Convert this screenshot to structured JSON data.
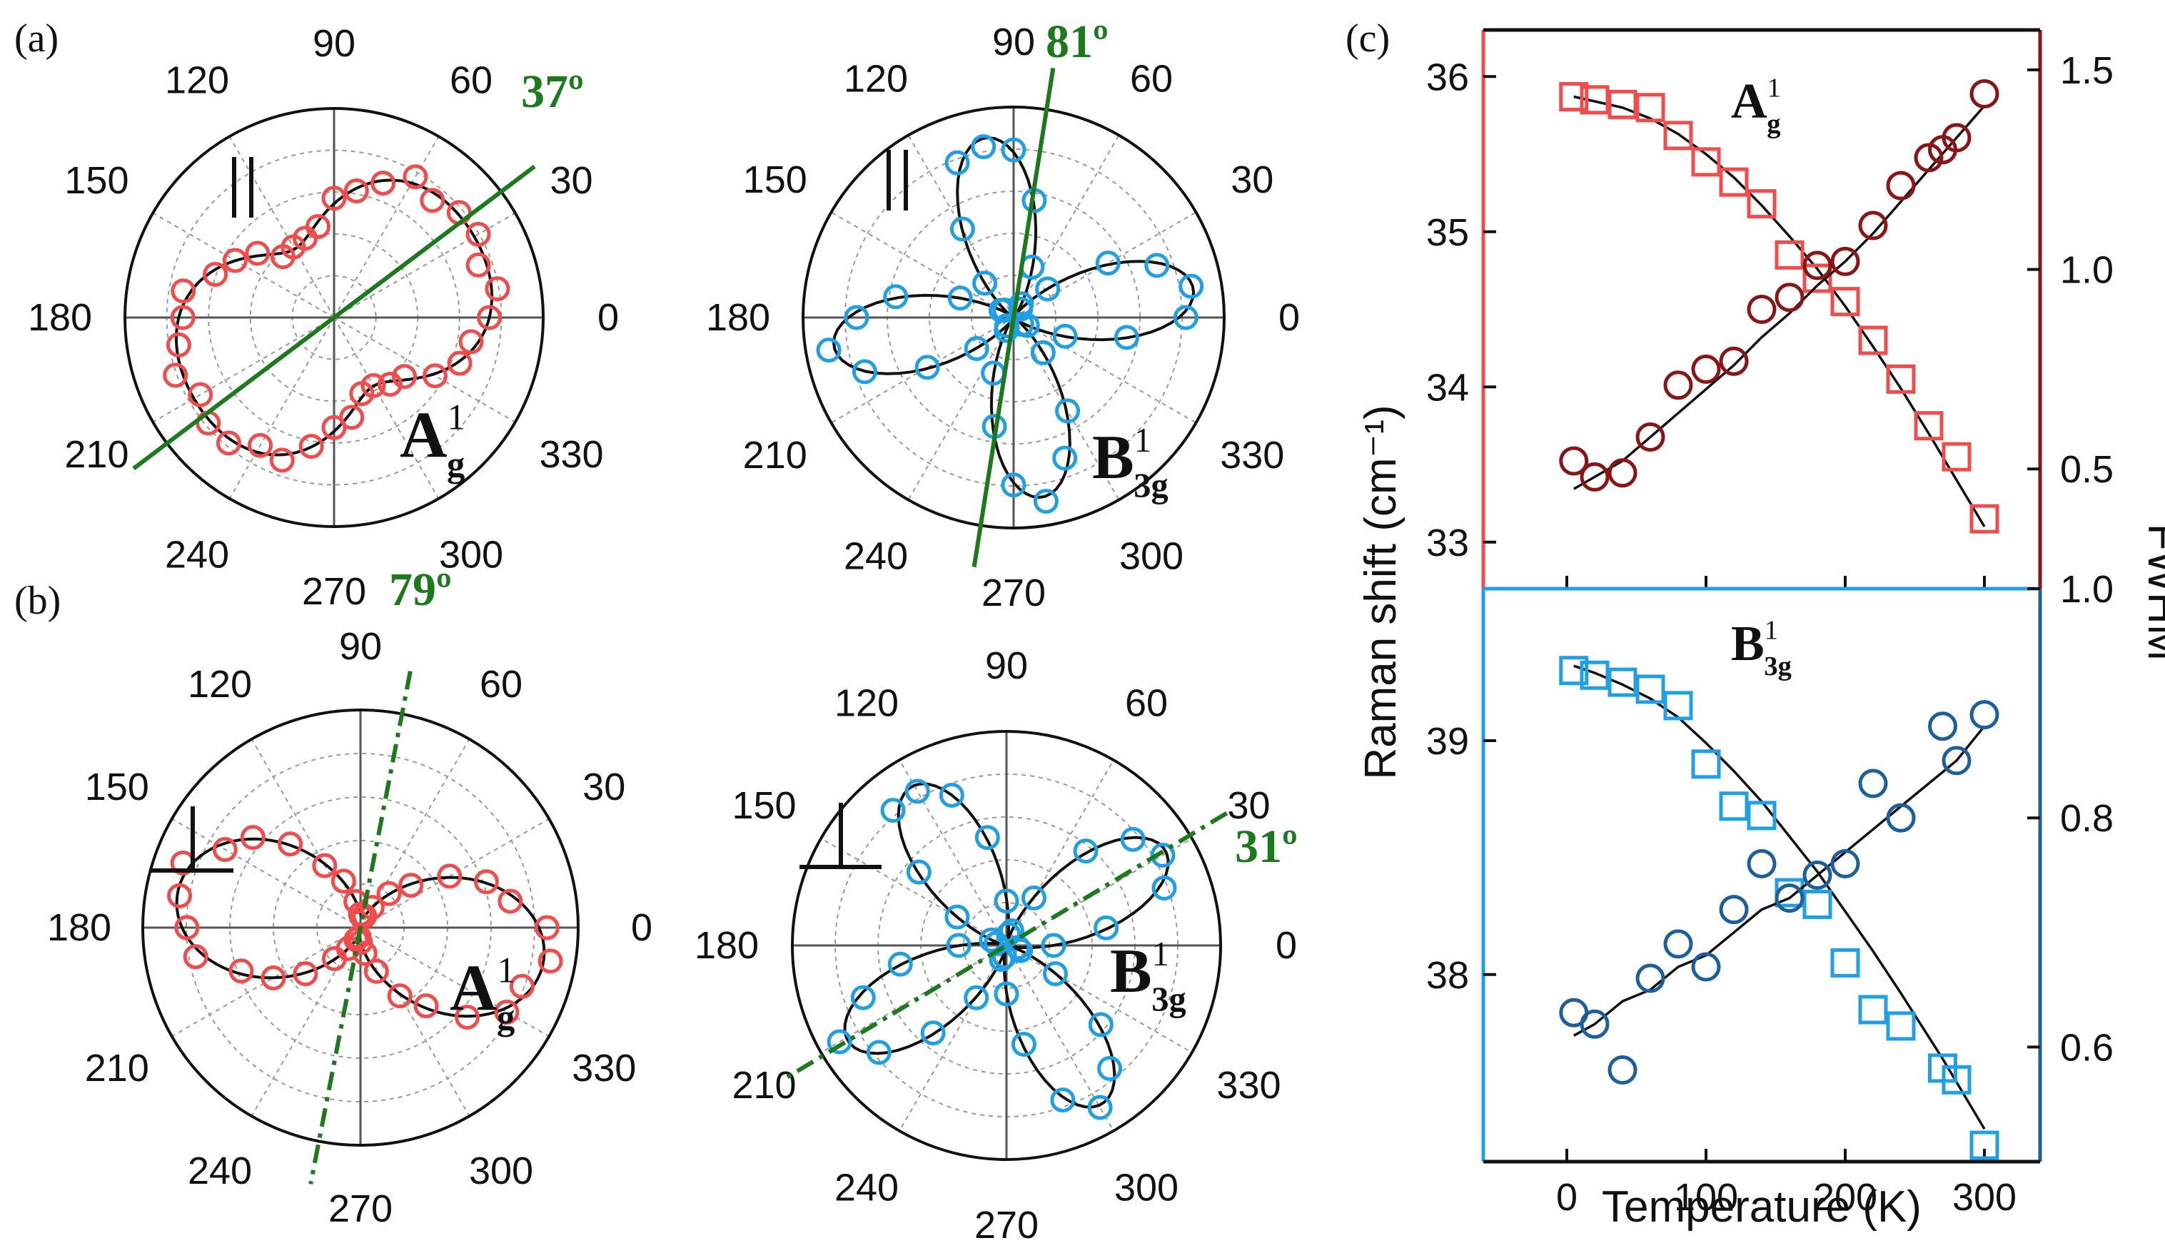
{
  "panel_labels": [
    "(a)",
    "(b)",
    "(c)"
  ],
  "colors": {
    "red": "#f24b4b",
    "blue": "#1fa0e6",
    "dark_red": "#8b1414",
    "dark_blue": "#1c5f9e",
    "green": "#1b7a1b",
    "grid": "#999999",
    "black": "#111111"
  },
  "polar_plots": [
    {
      "panel": "a",
      "mode": "A",
      "mode_sub": "g",
      "mode_sup": "1",
      "polarization_symbol": "||",
      "marker_color": "#f24b4b",
      "angle_annotation": "37º",
      "axis_angle_deg": 37,
      "axis_style": "solid",
      "angle_labels": [
        "0",
        "30",
        "60",
        "90",
        "120",
        "150",
        "180",
        "210",
        "240",
        "270",
        "300",
        "330"
      ],
      "rings": 5,
      "fit": {
        "a": 0.42,
        "b": 0.55,
        "phi_deg": 30
      },
      "points_deg": [
        0,
        10,
        20,
        30,
        40,
        50,
        60,
        70,
        80,
        90,
        100,
        110,
        120,
        130,
        140,
        150,
        160,
        170,
        180,
        190,
        200,
        210,
        220,
        230,
        240,
        250,
        260,
        270,
        280,
        290,
        300,
        310,
        320,
        330,
        340,
        350
      ]
    },
    {
      "panel": "a",
      "mode": "B",
      "mode_sub": "3g",
      "mode_sup": "1",
      "polarization_symbol": "||",
      "marker_color": "#1fa0e6",
      "angle_annotation": "81º",
      "axis_angle_deg": 81,
      "axis_style": "solid",
      "angle_labels": [
        "0",
        "30",
        "60",
        "90",
        "120",
        "150",
        "180",
        "210",
        "240",
        "270",
        "300",
        "330"
      ],
      "rings": 5,
      "fit": {
        "a": 0.06,
        "b": 0.92,
        "phi_deg": 0
      },
      "points_deg": [
        0,
        10,
        20,
        30,
        40,
        50,
        60,
        70,
        80,
        90,
        100,
        110,
        120,
        130,
        140,
        150,
        160,
        170,
        180,
        190,
        200,
        210,
        220,
        230,
        240,
        250,
        260,
        270,
        280,
        290,
        300,
        310,
        320,
        330,
        340,
        350
      ]
    },
    {
      "panel": "b",
      "mode": "A",
      "mode_sub": "g",
      "mode_sup": "1",
      "polarization_symbol": "⊥",
      "marker_color": "#f24b4b",
      "angle_annotation": "79º",
      "axis_angle_deg": 79,
      "axis_style": "dashdot",
      "angle_labels": [
        "0",
        "30",
        "60",
        "90",
        "120",
        "150",
        "180",
        "210",
        "240",
        "270",
        "300",
        "330"
      ],
      "rings": 5,
      "fit": {
        "a": 0.08,
        "b": 0.92,
        "phi_deg": 79
      },
      "points_deg": [
        0,
        10,
        20,
        30,
        40,
        50,
        60,
        70,
        80,
        90,
        100,
        110,
        120,
        130,
        140,
        150,
        160,
        170,
        180,
        190,
        200,
        210,
        220,
        230,
        240,
        250,
        260,
        270,
        280,
        290,
        300,
        310,
        320,
        330,
        340,
        350
      ]
    },
    {
      "panel": "b",
      "mode": "B",
      "mode_sub": "3g",
      "mode_sup": "1",
      "polarization_symbol": "⊥",
      "marker_color": "#1fa0e6",
      "angle_annotation": "31º",
      "axis_angle_deg": 31,
      "axis_style": "dashdot",
      "angle_labels": [
        "0",
        "30",
        "60",
        "90",
        "120",
        "150",
        "180",
        "210",
        "240",
        "270",
        "300",
        "330"
      ],
      "rings": 5,
      "fit": {
        "a": 0.06,
        "b": 0.92,
        "phi_deg": 31
      },
      "points_deg": [
        0,
        10,
        20,
        30,
        40,
        50,
        60,
        70,
        80,
        90,
        100,
        110,
        120,
        130,
        140,
        150,
        160,
        170,
        180,
        190,
        200,
        210,
        220,
        230,
        240,
        250,
        260,
        270,
        280,
        290,
        300,
        310,
        320,
        330,
        340,
        350
      ]
    }
  ],
  "chart_data": {
    "type": "scatter",
    "title": "",
    "xlabel": "Temperature (K)",
    "ylabel_left": "Raman shift (cm⁻¹)",
    "ylabel_right": "FWHM",
    "xlim": [
      -60,
      340
    ],
    "xticks": [
      0,
      100,
      200,
      300
    ],
    "subplots": [
      {
        "name": "A_g^1",
        "mode": "A",
        "mode_sub": "g",
        "mode_sup": "1",
        "frame_left_color": "#f24b4b",
        "frame_right_color": "#8b1414",
        "ylim_left": [
          32.7,
          36.3
        ],
        "yticks_left": [
          33,
          34,
          35,
          36
        ],
        "ylim_right": [
          0.2,
          1.6
        ],
        "yticks_right": [
          0.5,
          1.0,
          1.5
        ],
        "ytick_labels_right": [
          "0.5",
          "1.0",
          "1.5"
        ],
        "series": [
          {
            "name": "Raman shift",
            "axis": "left",
            "marker": "square",
            "color": "#f24b4b",
            "x": [
              5,
              20,
              40,
              60,
              80,
              100,
              120,
              140,
              160,
              180,
              200,
              220,
              240,
              260,
              280,
              300
            ],
            "y": [
              35.87,
              35.85,
              35.82,
              35.8,
              35.62,
              35.45,
              35.32,
              35.18,
              34.85,
              34.7,
              34.55,
              34.3,
              34.05,
              33.75,
              33.55,
              33.15
            ],
            "fit_y": [
              35.87,
              35.84,
              35.8,
              35.73,
              35.63,
              35.5,
              35.35,
              35.17,
              34.97,
              34.76,
              34.52,
              34.26,
              33.99,
              33.7,
              33.4,
              33.1
            ]
          },
          {
            "name": "FWHM",
            "axis": "right",
            "marker": "circle",
            "color": "#8b1414",
            "x": [
              5,
              20,
              40,
              60,
              80,
              100,
              120,
              140,
              160,
              180,
              200,
              220,
              240,
              260,
              270,
              280,
              300
            ],
            "y": [
              0.52,
              0.48,
              0.49,
              0.58,
              0.71,
              0.75,
              0.77,
              0.9,
              0.93,
              1.01,
              1.02,
              1.11,
              1.21,
              1.28,
              1.3,
              1.33,
              1.44
            ],
            "fit_y": [
              0.45,
              0.48,
              0.52,
              0.58,
              0.64,
              0.7,
              0.76,
              0.83,
              0.89,
              0.96,
              1.02,
              1.09,
              1.17,
              1.25,
              1.29,
              1.33,
              1.41
            ]
          }
        ]
      },
      {
        "name": "B_3g^1",
        "mode": "B",
        "mode_sub": "3g",
        "mode_sup": "1",
        "frame_left_color": "#1fa0e6",
        "frame_right_color": "#1c5f9e",
        "ylim_left": [
          37.2,
          39.65
        ],
        "yticks_left": [
          38,
          39
        ],
        "ylim_right": [
          0.5,
          1.0
        ],
        "yticks_right": [
          0.6,
          0.8,
          1.0
        ],
        "ytick_labels_right": [
          "0.6",
          "0.8",
          "1.0"
        ],
        "series": [
          {
            "name": "Raman shift",
            "axis": "left",
            "marker": "square",
            "color": "#1fa0e6",
            "x": [
              5,
              20,
              40,
              60,
              80,
              100,
              120,
              140,
              160,
              180,
              200,
              220,
              240,
              270,
              280,
              300
            ],
            "y": [
              39.3,
              39.28,
              39.25,
              39.22,
              39.15,
              38.9,
              38.72,
              38.68,
              38.35,
              38.3,
              38.05,
              37.85,
              37.78,
              37.6,
              37.55,
              37.27
            ],
            "fit_y": [
              39.32,
              39.29,
              39.24,
              39.18,
              39.1,
              38.99,
              38.87,
              38.74,
              38.59,
              38.44,
              38.27,
              38.1,
              37.92,
              37.64,
              37.54,
              37.34
            ]
          },
          {
            "name": "FWHM",
            "axis": "right",
            "marker": "circle",
            "color": "#1c5f9e",
            "x": [
              5,
              20,
              40,
              60,
              80,
              100,
              120,
              140,
              160,
              180,
              200,
              220,
              240,
              270,
              280,
              300
            ],
            "y": [
              0.63,
              0.62,
              0.58,
              0.66,
              0.69,
              0.67,
              0.72,
              0.76,
              0.73,
              0.75,
              0.76,
              0.83,
              0.8,
              0.88,
              0.85,
              0.89
            ],
            "fit_y": [
              0.61,
              0.62,
              0.64,
              0.65,
              0.67,
              0.68,
              0.7,
              0.72,
              0.73,
              0.75,
              0.77,
              0.79,
              0.81,
              0.84,
              0.85,
              0.88
            ]
          }
        ]
      }
    ]
  }
}
